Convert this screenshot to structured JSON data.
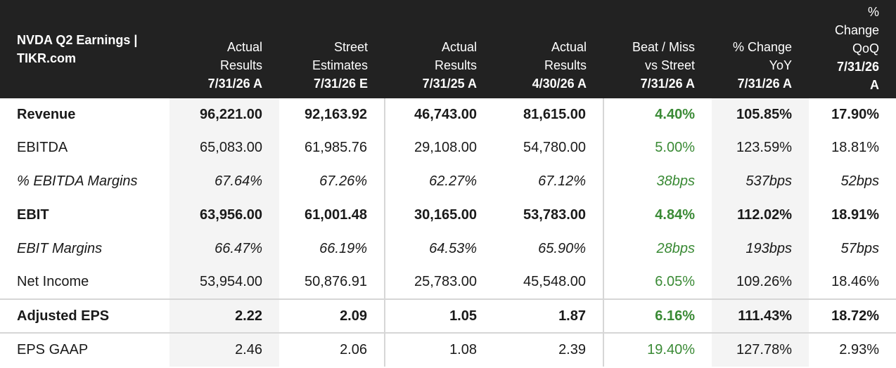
{
  "header": {
    "title_line1": "NVDA Q2 Earnings |",
    "title_line2": "TIKR.com",
    "columns": [
      {
        "line1": "Actual",
        "line2": "Results",
        "date": "7/31/26 A"
      },
      {
        "line1": "Street",
        "line2": "Estimates",
        "date": "7/31/26 E"
      },
      {
        "line1": "Actual",
        "line2": "Results",
        "date": "7/31/25 A"
      },
      {
        "line1": "Actual",
        "line2": "Results",
        "date": "4/30/26 A"
      },
      {
        "line1": "Beat / Miss",
        "line2": "vs Street",
        "date": "7/31/26 A"
      },
      {
        "line1": "% Change",
        "line2": "YoY",
        "date": "7/31/26 A"
      },
      {
        "line1": "%",
        "line2": "Change",
        "line3": "QoQ",
        "date_part1": "7/31/26",
        "date_part2": "A"
      }
    ]
  },
  "rows": [
    {
      "label": "Revenue",
      "values": [
        "96,221.00",
        "92,163.92",
        "46,743.00",
        "81,615.00",
        "4.40%",
        "105.85%",
        "17.90%"
      ]
    },
    {
      "label": "EBITDA",
      "values": [
        "65,083.00",
        "61,985.76",
        "29,108.00",
        "54,780.00",
        "5.00%",
        "123.59%",
        "18.81%"
      ]
    },
    {
      "label": "% EBITDA Margins",
      "values": [
        "67.64%",
        "67.26%",
        "62.27%",
        "67.12%",
        "38bps",
        "537bps",
        "52bps"
      ]
    },
    {
      "label": "EBIT",
      "values": [
        "63,956.00",
        "61,001.48",
        "30,165.00",
        "53,783.00",
        "4.84%",
        "112.02%",
        "18.91%"
      ]
    },
    {
      "label": "EBIT Margins",
      "values": [
        "66.47%",
        "66.19%",
        "64.53%",
        "65.90%",
        "28bps",
        "193bps",
        "57bps"
      ]
    },
    {
      "label": "Net Income",
      "values": [
        "53,954.00",
        "50,876.91",
        "25,783.00",
        "45,548.00",
        "6.05%",
        "109.26%",
        "18.46%"
      ]
    },
    {
      "label": "Adjusted EPS",
      "values": [
        "2.22",
        "2.09",
        "1.05",
        "1.87",
        "6.16%",
        "111.43%",
        "18.72%"
      ]
    },
    {
      "label": "EPS GAAP",
      "values": [
        "2.46",
        "2.06",
        "1.08",
        "2.39",
        "19.40%",
        "127.78%",
        "2.93%"
      ]
    }
  ],
  "colors": {
    "header_bg": "#222222",
    "beat_green": "#3a8a35",
    "shade": "#f4f4f4"
  }
}
